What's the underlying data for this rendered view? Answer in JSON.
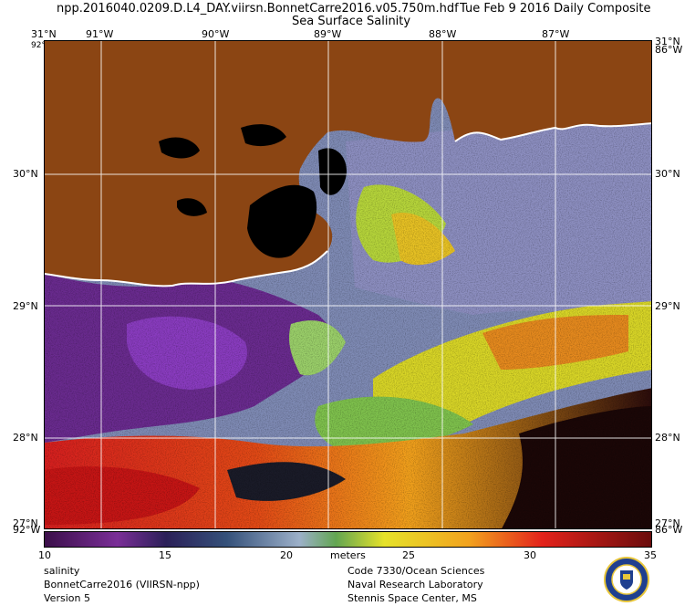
{
  "header": {
    "filename": "npp.2016040.0209.D.L4_DAY.viirsn.BonnetCarre2016.v05.750m.hdf",
    "date": "Tue Feb  9 2016 Daily Composite",
    "product": "Sea Surface Salinity"
  },
  "map": {
    "lon_labels": [
      "91°W",
      "90°W",
      "89°W",
      "88°W",
      "87°W"
    ],
    "lat_labels": [
      "30°N",
      "29°N",
      "28°N"
    ],
    "corner_labels": {
      "top_left": "31°N",
      "top_left_lon": "92°W",
      "top_right": "31°N",
      "top_right_lon": "86°W",
      "bottom_left": "27°N",
      "bottom_left_lon": "92°W",
      "bottom_right": "27°N",
      "bottom_right_lon": "86°W"
    },
    "colors": {
      "land": "#8b4513",
      "water_deep": "#6a2b8f",
      "coast": "#ffffff",
      "grid": "#ffffff"
    }
  },
  "colorbar": {
    "ticks": [
      "10",
      "15",
      "20",
      "25",
      "30",
      "35"
    ],
    "unit": "meters",
    "min": 10,
    "max": 35
  },
  "footer": {
    "left": [
      "salinity",
      "BonnetCarre2016 (VIIRSN-npp)",
      "Version 5"
    ],
    "right": [
      "Code 7330/Ocean Sciences",
      "Naval Research Laboratory",
      "Stennis Space Center, MS"
    ]
  }
}
